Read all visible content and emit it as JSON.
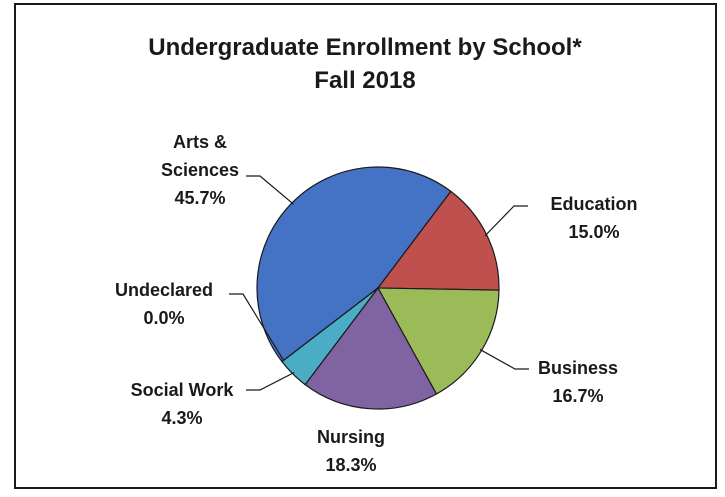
{
  "chart_data": {
    "type": "pie",
    "title": "Undergraduate Enrollment by School*",
    "subtitle": "Fall 2018",
    "slices": [
      {
        "label_lines": [
          "Arts &",
          "Sciences"
        ],
        "value_text": "45.7%",
        "value": 45.7,
        "color": "#4472c4"
      },
      {
        "label_lines": [
          "Education"
        ],
        "value_text": "15.0%",
        "value": 15.0,
        "color": "#c0504d"
      },
      {
        "label_lines": [
          "Business"
        ],
        "value_text": "16.7%",
        "value": 16.7,
        "color": "#9bbb59"
      },
      {
        "label_lines": [
          "Nursing"
        ],
        "value_text": "18.3%",
        "value": 18.3,
        "color": "#8064a2"
      },
      {
        "label_lines": [
          "Social Work"
        ],
        "value_text": "4.3%",
        "value": 4.3,
        "color": "#4bacc6"
      },
      {
        "label_lines": [
          "Undeclared"
        ],
        "value_text": "0.0%",
        "value": 0.0,
        "color": "#f79646"
      }
    ],
    "legend": "none"
  }
}
